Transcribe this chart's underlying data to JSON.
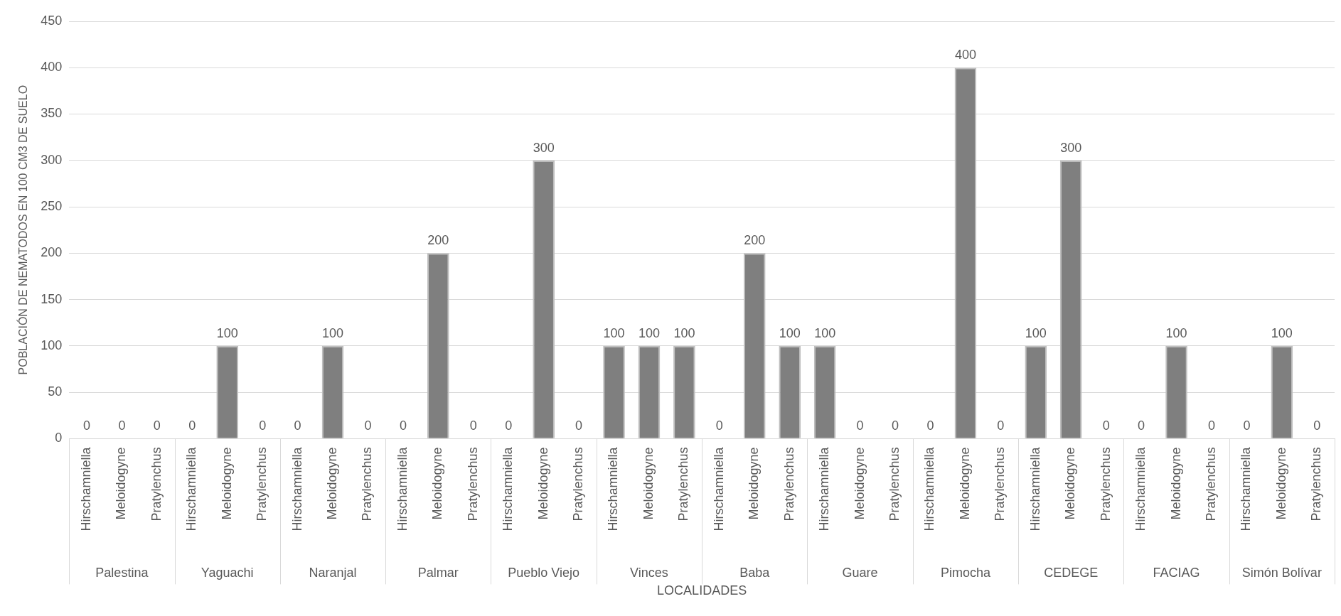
{
  "chart_data": {
    "type": "bar",
    "xlabel": "LOCALIDADES",
    "ylabel": "POBLACIÓN DE NEMATODOS EN 100 CM3 DE SUELO",
    "categories": [
      "Hirschamniella",
      "Meloidogyne",
      "Pratylenchus",
      "Hirschamniella",
      "Meloidogyne",
      "Pratylenchus",
      "Hirschamniella",
      "Meloidogyne",
      "Pratylenchus",
      "Hirschamniella",
      "Meloidogyne",
      "Pratylenchus",
      "Hirschamniella",
      "Meloidogyne",
      "Pratylenchus",
      "Hirschamniella",
      "Meloidogyne",
      "Pratylenchus",
      "Hirschamniella",
      "Meloidogyne",
      "Pratylenchus",
      "Hirschamniella",
      "Meloidogyne",
      "Pratylenchus",
      "Hirschamniella",
      "Meloidogyne",
      "Pratylenchus",
      "Hirschamniella",
      "Meloidogyne",
      "Pratylenchus",
      "Hirschamniella",
      "Meloidogyne",
      "Pratylenchus",
      "Hirschamniella",
      "Meloidogyne",
      "Pratylenchus"
    ],
    "values": [
      0,
      0,
      0,
      0,
      100,
      0,
      0,
      100,
      0,
      0,
      200,
      0,
      0,
      300,
      0,
      100,
      100,
      100,
      0,
      200,
      100,
      100,
      0,
      0,
      0,
      400,
      0,
      100,
      300,
      0,
      0,
      100,
      0,
      0,
      100,
      0
    ],
    "annotations": [
      "Palestina",
      "Yaguachi",
      "Naranjal",
      "Palmar",
      "Pueblo Viejo",
      "Vinces",
      "Baba",
      "Guare",
      "Pimocha",
      "CEDEGE",
      "FACIAG",
      "Simón Bolívar"
    ],
    "color": "#7f7f7f",
    "ylim": [
      0,
      450
    ],
    "yticks": [
      0,
      50,
      100,
      150,
      200,
      250,
      300,
      350,
      400,
      450
    ],
    "grid": "y",
    "data_labels": true,
    "legend": false
  }
}
